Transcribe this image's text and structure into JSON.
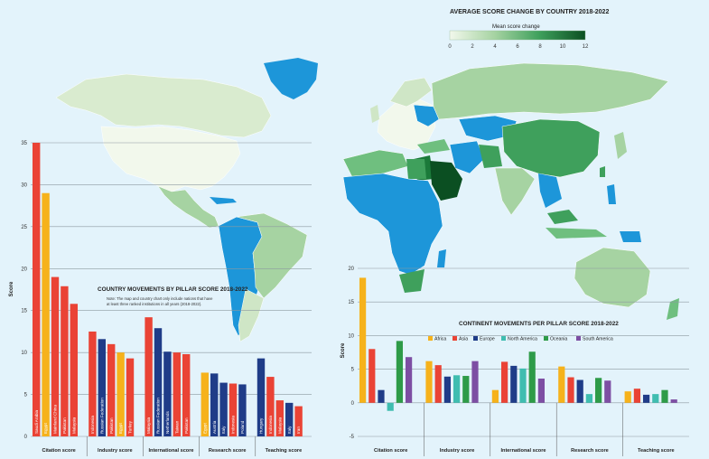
{
  "map": {
    "title": "AVERAGE SCORE CHANGE BY COUNTRY 2018-2022",
    "legend_title": "Mean score change",
    "legend_ticks": [
      "0",
      "2",
      "4",
      "6",
      "8",
      "10",
      "12"
    ],
    "scale_colors": [
      "#f2f8ec",
      "#cfe6c6",
      "#a6d3a2",
      "#6fbf7f",
      "#3fa05c",
      "#1b7a3a",
      "#0b4f22"
    ],
    "excluded_color": "#1d96d9"
  },
  "chart_data": [
    {
      "type": "bar",
      "title": "COUNTRY MOVEMENTS BY PILLAR SCORE 2018-2022",
      "note_lines": [
        "Note: The map and country chart only include nations that have",
        "at least three ranked institutions in all years (2018-2022)."
      ],
      "ylabel": "Score",
      "ylim": [
        0,
        35
      ],
      "yticks": [
        "0",
        "5",
        "10",
        "15",
        "20",
        "25",
        "30",
        "35"
      ],
      "groups": [
        {
          "name": "Citation score",
          "bars": [
            {
              "label": "Saudi Arabia",
              "value": 35.0,
              "color": "#ea4335"
            },
            {
              "label": "Egypt",
              "value": 29.0,
              "color": "#f6b21b"
            },
            {
              "label": "Mainland China",
              "value": 19.0,
              "color": "#ea4335"
            },
            {
              "label": "Pakistan",
              "value": 17.9,
              "color": "#ea4335"
            },
            {
              "label": "Malaysia",
              "value": 15.8,
              "color": "#ea4335"
            }
          ]
        },
        {
          "name": "Industry score",
          "bars": [
            {
              "label": "Indonesia",
              "value": 12.5,
              "color": "#ea4335"
            },
            {
              "label": "Russian Federation",
              "value": 11.6,
              "color": "#1f3c88"
            },
            {
              "label": "Pakistan",
              "value": 11.0,
              "color": "#ea4335"
            },
            {
              "label": "Egypt",
              "value": 10.0,
              "color": "#f6b21b"
            },
            {
              "label": "Turkey",
              "value": 9.3,
              "color": "#ea4335"
            }
          ]
        },
        {
          "name": "International score",
          "bars": [
            {
              "label": "Malaysia",
              "value": 14.2,
              "color": "#ea4335"
            },
            {
              "label": "Russian Federation",
              "value": 12.9,
              "color": "#1f3c88"
            },
            {
              "label": "Netherlands",
              "value": 10.1,
              "color": "#1f3c88"
            },
            {
              "label": "Taiwan",
              "value": 10.0,
              "color": "#ea4335"
            },
            {
              "label": "Pakistan",
              "value": 9.8,
              "color": "#ea4335"
            }
          ]
        },
        {
          "name": "Research score",
          "bars": [
            {
              "label": "Egypt",
              "value": 7.6,
              "color": "#f6b21b"
            },
            {
              "label": "Austria",
              "value": 7.5,
              "color": "#1f3c88"
            },
            {
              "label": "Italy",
              "value": 6.4,
              "color": "#1f3c88"
            },
            {
              "label": "Indonesia",
              "value": 6.3,
              "color": "#ea4335"
            },
            {
              "label": "Poland",
              "value": 6.2,
              "color": "#1f3c88"
            }
          ]
        },
        {
          "name": "Teaching score",
          "bars": [
            {
              "label": "Hungary",
              "value": 9.3,
              "color": "#1f3c88"
            },
            {
              "label": "Indonesia",
              "value": 7.1,
              "color": "#ea4335"
            },
            {
              "label": "Malaysia",
              "value": 4.3,
              "color": "#ea4335"
            },
            {
              "label": "Italy",
              "value": 4.0,
              "color": "#1f3c88"
            },
            {
              "label": "Iran",
              "value": 3.6,
              "color": "#ea4335"
            }
          ]
        }
      ]
    },
    {
      "type": "bar",
      "title": "CONTINENT MOVEMENTS PER PILLAR SCORE 2018-2022",
      "ylabel": "Score",
      "ylim": [
        -5,
        20
      ],
      "yticks": [
        "-5",
        "0",
        "5",
        "10",
        "15",
        "20"
      ],
      "categories": [
        "Citation score",
        "Industry score",
        "International score",
        "Research score",
        "Teaching score"
      ],
      "legend_placement": "top",
      "series": [
        {
          "name": "Africa",
          "color": "#f6b21b",
          "values": [
            18.6,
            6.2,
            1.9,
            5.4,
            1.7
          ]
        },
        {
          "name": "Asia",
          "color": "#ea4335",
          "values": [
            8.0,
            5.6,
            6.1,
            3.8,
            2.1
          ]
        },
        {
          "name": "Europe",
          "color": "#1f3c88",
          "values": [
            1.9,
            3.9,
            5.5,
            3.4,
            1.2
          ]
        },
        {
          "name": "North America",
          "color": "#3fbdb0",
          "values": [
            -1.2,
            4.1,
            5.1,
            1.3,
            1.3
          ]
        },
        {
          "name": "Oceania",
          "color": "#2e9b48",
          "values": [
            9.2,
            4.0,
            7.6,
            3.7,
            1.9
          ]
        },
        {
          "name": "South America",
          "color": "#7d4ea3",
          "values": [
            6.8,
            6.2,
            3.6,
            3.3,
            0.5
          ]
        }
      ]
    }
  ]
}
